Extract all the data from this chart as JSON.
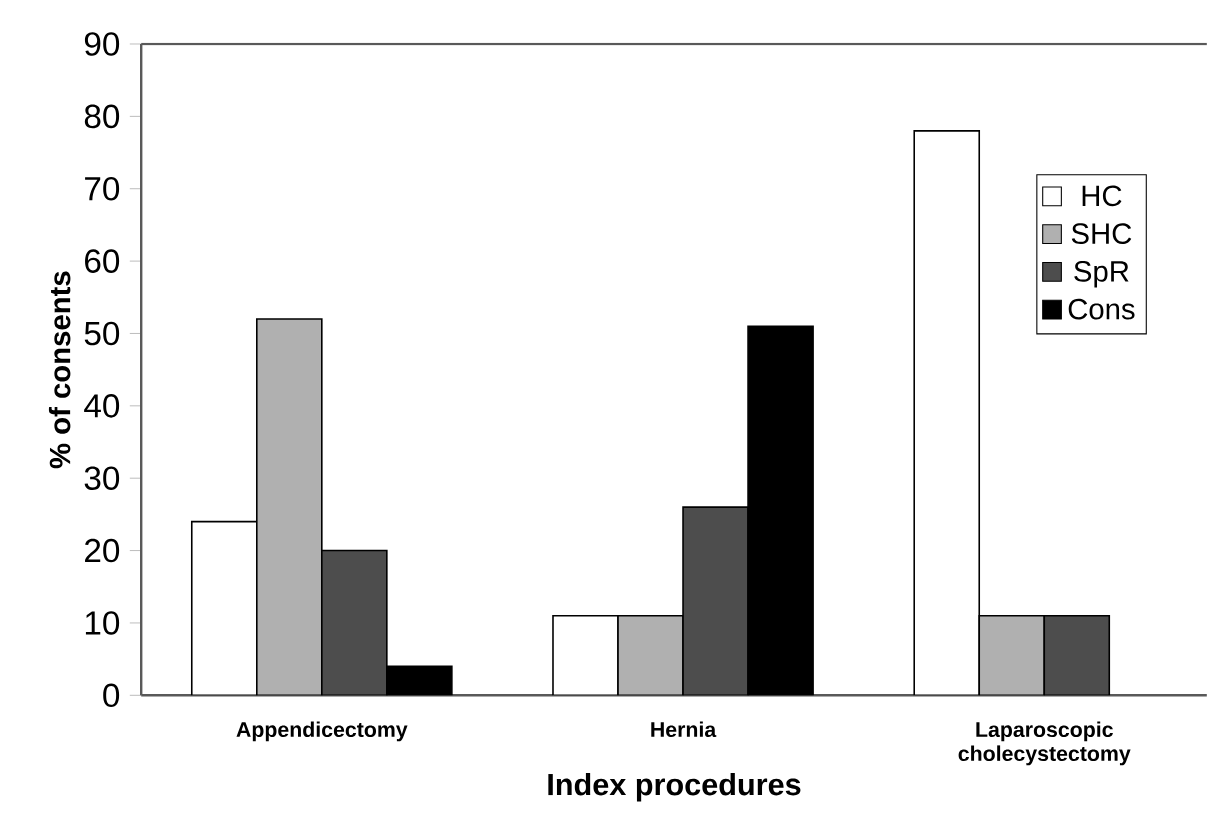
{
  "chart_data": {
    "type": "bar",
    "xlabel": "Index procedures",
    "ylabel": "% of consents",
    "categories": [
      "Appendicectomy",
      "Hernia",
      "Laparoscopic cholecystectomy"
    ],
    "series": [
      {
        "name": "HC",
        "color": "#ffffff",
        "values": [
          24,
          11,
          78
        ]
      },
      {
        "name": "SHC",
        "color": "#b0b0b0",
        "values": [
          52,
          11,
          11
        ]
      },
      {
        "name": "SpR",
        "color": "#4d4d4d",
        "values": [
          20,
          26,
          11
        ]
      },
      {
        "name": "Cons",
        "color": "#000000",
        "values": [
          4,
          51,
          null
        ]
      }
    ],
    "ylim": [
      0,
      90
    ],
    "yticks": [
      0,
      10,
      20,
      30,
      40,
      50,
      60,
      70,
      80,
      90
    ],
    "grid": false,
    "legend": "top right"
  }
}
